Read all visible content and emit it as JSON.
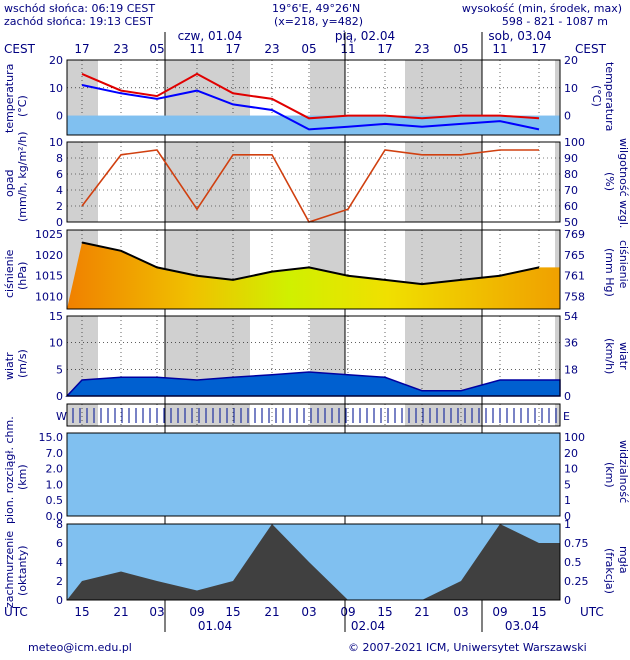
{
  "header": {
    "sunrise": "wschód słońca: 06:19 CEST",
    "sunset": "zachód słońca: 19:13 CEST",
    "coords": "19°6'E, 49°26'N",
    "grid": "(x=218, y=482)",
    "elev_title": "wysokość (min, środek, max)",
    "elev_values": "598 - 821 - 1087 m"
  },
  "top_axis": {
    "tz": "CEST",
    "hours": [
      "17",
      "23",
      "05",
      "11",
      "17",
      "23",
      "05",
      "11",
      "17",
      "23",
      "05",
      "11",
      "17"
    ],
    "days": [
      "czw, 01.04",
      "pią, 02.04",
      "sob, 03.04"
    ]
  },
  "bottom_axis": {
    "tz": "UTC",
    "hours": [
      "15",
      "21",
      "03",
      "09",
      "15",
      "21",
      "03",
      "09",
      "15",
      "21",
      "03",
      "09",
      "15"
    ],
    "days": [
      "01.04",
      "02.04",
      "03.04"
    ]
  },
  "footer": {
    "email": "meteo@icm.edu.pl",
    "copyright": "© 2007-2021 ICM, Uniwersytet Warszawski"
  },
  "panels": {
    "temp": {
      "left_label": "temperatura",
      "left_unit": "(°C)",
      "right_label": "temperatura",
      "right_unit": "(°C)",
      "ticks": [
        "20",
        "10",
        "0"
      ]
    },
    "precip": {
      "left_label": "opad",
      "left_unit": "(mm/h, kg/m²/h)",
      "right_label": "wilgotność wzgl.",
      "right_unit": "(%)",
      "left_ticks": [
        "10",
        "8",
        "6",
        "4",
        "2",
        "0"
      ],
      "right_ticks": [
        "100",
        "90",
        "80",
        "70",
        "60",
        "50"
      ]
    },
    "pressure": {
      "left_label": "ciśnienie",
      "left_unit": "(hPa)",
      "right_label": "ciśnienie",
      "right_unit": "(mm Hg)",
      "left_ticks": [
        "1025",
        "1020",
        "1015",
        "1010"
      ],
      "right_ticks": [
        "769",
        "765",
        "761",
        "758"
      ]
    },
    "wind": {
      "left_label": "wiatr",
      "left_unit": "(m/s)",
      "right_label": "wiatr",
      "right_unit": "(km/h)",
      "left_ticks": [
        "15",
        "10",
        "5",
        "0"
      ],
      "right_ticks": [
        "54",
        "36",
        "18",
        "0"
      ]
    },
    "winddir": {
      "w": "W",
      "n": "N",
      "s": "S",
      "e": "E"
    },
    "cloud": {
      "left_label": "pion. rozciągł. chm.",
      "left_unit": "(km)",
      "right_label": "widzialność",
      "right_unit": "(km)",
      "left_ticks": [
        "15.0",
        "7.0",
        "2.0",
        "1.0",
        "0.5",
        "0.0"
      ],
      "right_ticks": [
        "100",
        "20",
        "10",
        "5",
        "1",
        "0"
      ]
    },
    "cover": {
      "left_label": "zachmurzenie",
      "left_unit": "(oktanty)",
      "right_label": "mgła",
      "right_unit": "(frakcja)",
      "left_ticks": [
        "8",
        "6",
        "4",
        "2",
        "0"
      ],
      "right_ticks": [
        "1",
        "0.75",
        "0.5",
        "0.25",
        "0"
      ]
    }
  },
  "colors": {
    "text": "#000080",
    "temp_line": "#e00000",
    "dew_line": "#0000ff",
    "rh_line": "#d04010",
    "pressure_line": "#000000",
    "vis_line": "#f0a020",
    "cloud_dark": "#404040"
  },
  "chart_data": [
    {
      "type": "line",
      "name": "temperature",
      "x_hours_utc": [
        0,
        6,
        12,
        18,
        24,
        30,
        36,
        42,
        48,
        54,
        60,
        66,
        72
      ],
      "series": [
        {
          "values": [
            15,
            9,
            7,
            15,
            8,
            6,
            -1,
            0,
            0,
            -1,
            0,
            0,
            -1
          ]
        },
        {
          "values": [
            11,
            8,
            6,
            9,
            4,
            2,
            -5,
            -4,
            -3,
            -4,
            -3,
            -2,
            -5
          ]
        }
      ],
      "ylim": [
        -7,
        20
      ]
    },
    {
      "type": "line",
      "name": "humidity",
      "x_hours_utc": [
        0,
        6,
        12,
        18,
        24,
        30,
        36,
        42,
        48,
        54,
        60,
        66,
        72
      ],
      "values": [
        60,
        92,
        95,
        58,
        92,
        92,
        50,
        58,
        95,
        92,
        92,
        95,
        95
      ],
      "ylim": [
        50,
        100
      ]
    },
    {
      "type": "line",
      "name": "pressure",
      "x_hours_utc": [
        0,
        6,
        12,
        18,
        24,
        30,
        36,
        42,
        48,
        54,
        60,
        66,
        72
      ],
      "values": [
        1023,
        1021,
        1017,
        1015,
        1014,
        1016,
        1017,
        1015,
        1014,
        1013,
        1014,
        1015,
        1017
      ],
      "ylim": [
        1007,
        1026
      ]
    },
    {
      "type": "area",
      "name": "wind",
      "x_hours_utc": [
        0,
        6,
        12,
        18,
        24,
        30,
        36,
        42,
        48,
        54,
        60,
        66,
        72
      ],
      "values": [
        3,
        3.5,
        3.5,
        3,
        3.5,
        4,
        4.5,
        4,
        3.5,
        1,
        1,
        3,
        3
      ],
      "ylim": [
        0,
        15
      ]
    },
    {
      "type": "area",
      "name": "cloud_cover",
      "x_hours_utc": [
        0,
        6,
        12,
        18,
        24,
        30,
        36,
        42,
        48,
        54,
        60,
        66,
        72
      ],
      "values": [
        2,
        3,
        2,
        1,
        2,
        8,
        4,
        0,
        0,
        0,
        2,
        8,
        6
      ],
      "ylim": [
        0,
        8
      ]
    }
  ]
}
